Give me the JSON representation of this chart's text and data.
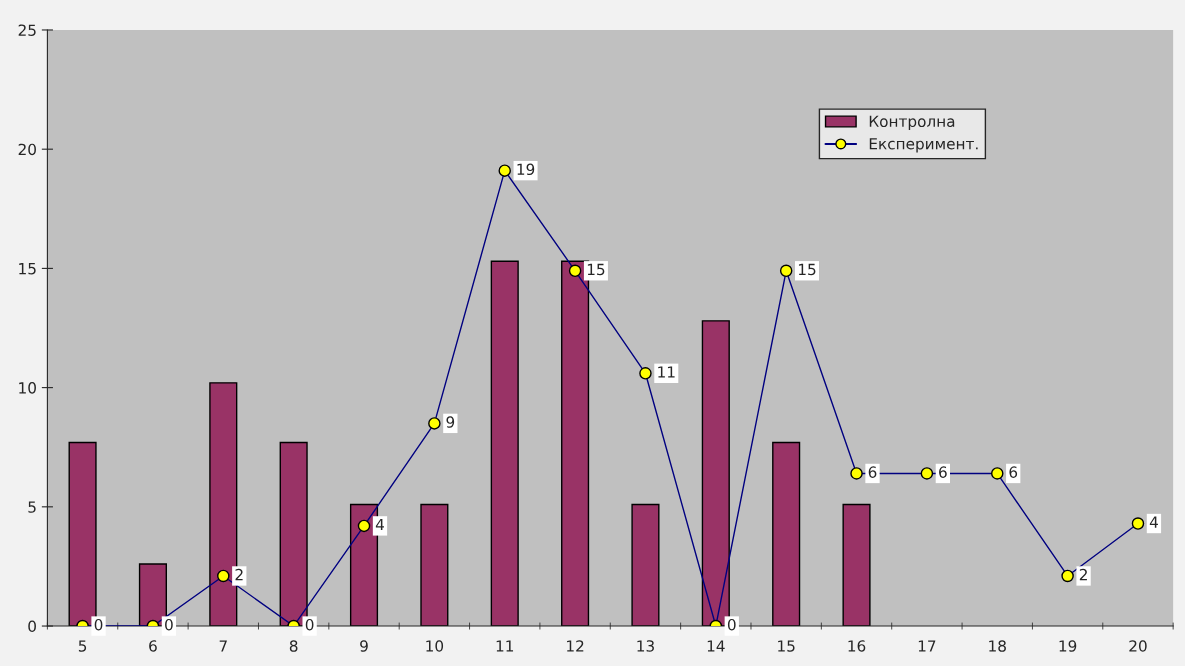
{
  "chart_data": {
    "type": "bar",
    "categories": [
      "5",
      "6",
      "7",
      "8",
      "9",
      "10",
      "11",
      "12",
      "13",
      "14",
      "15",
      "16",
      "17",
      "18",
      "19",
      "20"
    ],
    "series": [
      {
        "name": "Контролна",
        "color": "#993366",
        "values": [
          7.7,
          2.6,
          10.2,
          7.7,
          5.1,
          5.1,
          15.3,
          15.3,
          5.1,
          12.8,
          7.7,
          5.1,
          null,
          null,
          null,
          null
        ]
      },
      {
        "name": "Експеримент.",
        "type": "line",
        "color": "#000080",
        "marker": "circle",
        "values": [
          0,
          0,
          2.1,
          0,
          4.2,
          8.5,
          19.1,
          14.9,
          10.6,
          0,
          14.9,
          6.4,
          6.4,
          6.4,
          2.1,
          4.3
        ],
        "value_labels": [
          "0",
          "0",
          "2",
          "0",
          "4",
          "9",
          "19",
          "15",
          "11",
          "0",
          "15",
          "6",
          "6",
          "6",
          "2",
          "4"
        ]
      }
    ],
    "ylim": [
      0,
      25
    ],
    "yticks": [
      0,
      5,
      10,
      15,
      20,
      25
    ],
    "grid": false,
    "legend": "top right"
  }
}
